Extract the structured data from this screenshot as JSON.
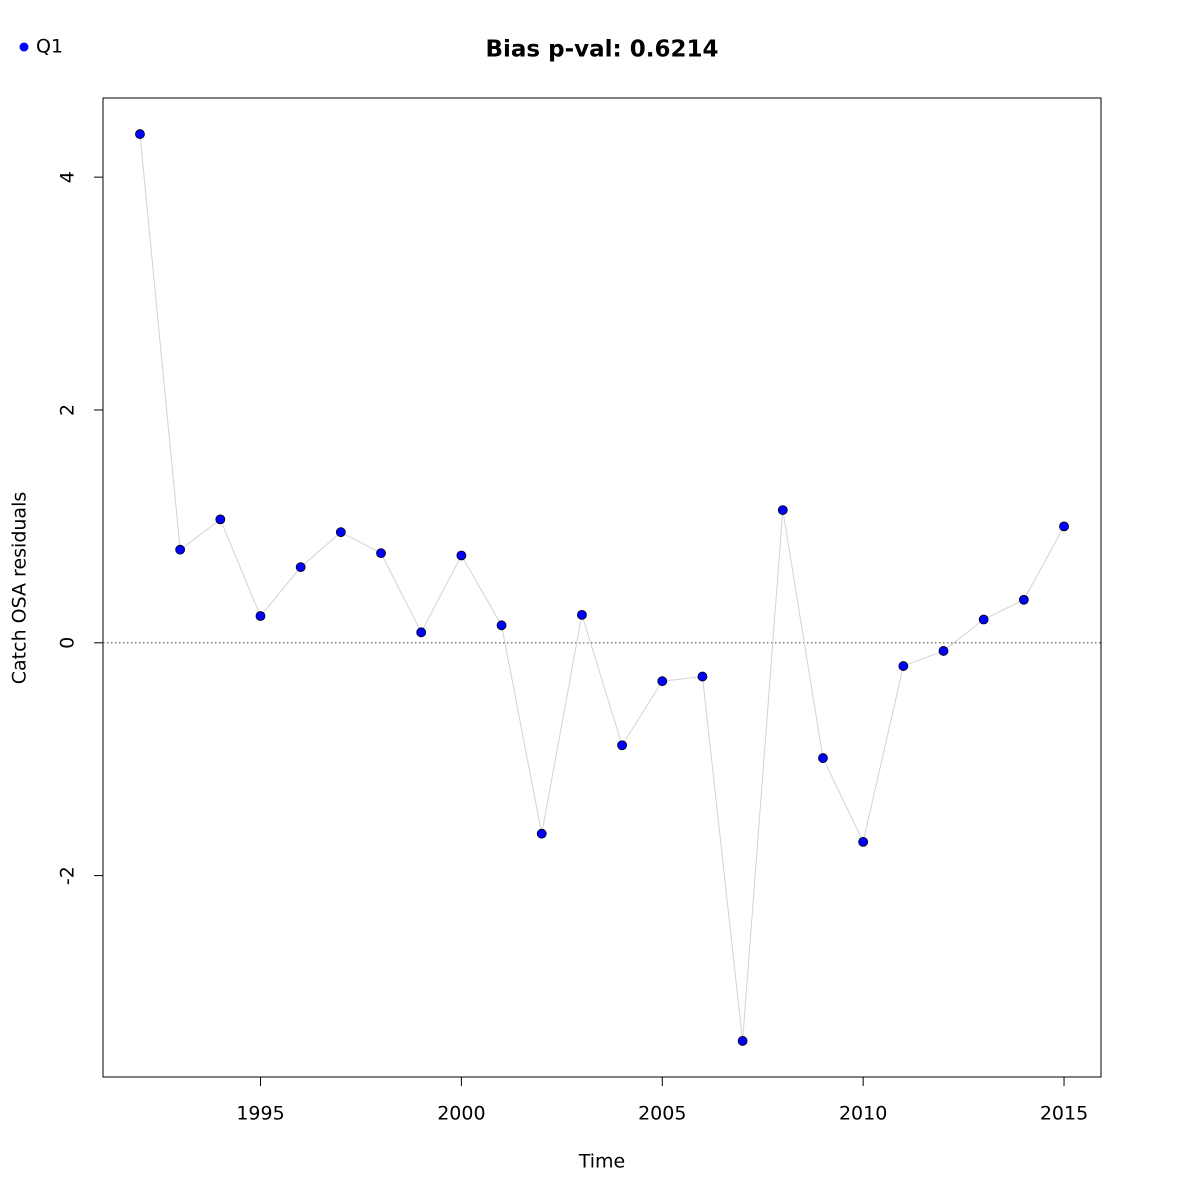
{
  "chart_data": {
    "type": "line",
    "title": "Bias p-val: 0.6214",
    "title_color": "#228b22",
    "xlabel": "Time",
    "ylabel": "Catch OSA residuals",
    "x": [
      1992,
      1993,
      1994,
      1995,
      1996,
      1997,
      1998,
      1999,
      2000,
      2001,
      2002,
      2003,
      2004,
      2005,
      2006,
      2007,
      2008,
      2009,
      2010,
      2011,
      2012,
      2013,
      2014,
      2015
    ],
    "series": [
      {
        "name": "Q1",
        "color": "#0000ff",
        "line_color": "#d3d3d3",
        "values": [
          4.37,
          0.8,
          1.06,
          0.23,
          0.65,
          0.95,
          0.77,
          0.09,
          0.75,
          0.15,
          -1.64,
          0.24,
          -0.88,
          -0.33,
          -0.29,
          -3.42,
          1.14,
          -0.99,
          -1.71,
          -0.2,
          -0.07,
          0.2,
          0.37,
          1.0
        ]
      }
    ],
    "xlim": [
      1991.08,
      2015.92
    ],
    "ylim": [
      -3.73,
      4.68
    ],
    "xticks": [
      1995,
      2000,
      2005,
      2010,
      2015
    ],
    "yticks": [
      -2,
      0,
      2,
      4
    ],
    "hline": 0,
    "legend": "top-left"
  }
}
